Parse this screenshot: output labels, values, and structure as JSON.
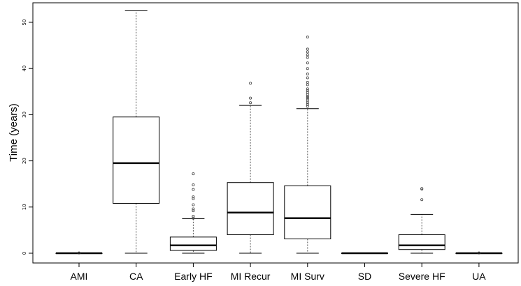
{
  "chart_data": {
    "type": "boxplot",
    "ylabel": "Time (years)",
    "xlabel": "",
    "ylim": [
      0,
      55
    ],
    "yticks": [
      0,
      10,
      20,
      30,
      40,
      50
    ],
    "categories": [
      "AMI",
      "CA",
      "Early HF",
      "MI Recur",
      "MI Surv",
      "SD",
      "Severe HF",
      "UA"
    ],
    "boxes": [
      {
        "category": "AMI",
        "min": 0,
        "q1": 0,
        "median": 0,
        "q3": 0,
        "max": 0,
        "outliers": [
          0.05
        ]
      },
      {
        "category": "CA",
        "min": 0,
        "q1": 10.8,
        "median": 19.5,
        "q3": 29.5,
        "max": 52.5,
        "outliers": []
      },
      {
        "category": "Early HF",
        "min": 0,
        "q1": 0.6,
        "median": 1.7,
        "q3": 3.5,
        "max": 7.5,
        "outliers": [
          7.6,
          8.0,
          9.2,
          9.6,
          10.5,
          11.8,
          12.2,
          13.8,
          14.8,
          17.2
        ]
      },
      {
        "category": "MI Recur",
        "min": 0,
        "q1": 4.0,
        "median": 8.8,
        "q3": 15.3,
        "max": 32.0,
        "outliers": [
          32.6,
          33.6,
          36.8
        ]
      },
      {
        "category": "MI Surv",
        "min": 0,
        "q1": 3.1,
        "median": 7.6,
        "q3": 14.6,
        "max": 31.3,
        "outliers": [
          31.8,
          32.2,
          32.6,
          33.0,
          33.4,
          33.7,
          34.0,
          34.4,
          34.8,
          35.2,
          35.6,
          36.5,
          37.0,
          38.0,
          38.8,
          40.0,
          41.2,
          42.4,
          43.0,
          43.6,
          44.2,
          46.8
        ]
      },
      {
        "category": "SD",
        "min": 0,
        "q1": 0,
        "median": 0,
        "q3": 0,
        "max": 0,
        "outliers": []
      },
      {
        "category": "Severe HF",
        "min": 0,
        "q1": 0.8,
        "median": 1.7,
        "q3": 4.0,
        "max": 8.4,
        "outliers": [
          11.6,
          13.9,
          14.0
        ]
      },
      {
        "category": "UA",
        "min": 0,
        "q1": 0,
        "median": 0,
        "q3": 0,
        "max": 0,
        "outliers": [
          0.05
        ]
      }
    ],
    "grid": false,
    "legend": "none",
    "colors": {
      "box_fill": "#ffffff",
      "stroke": "#000000",
      "whisker": "#555555",
      "outlier": "#444444"
    }
  }
}
